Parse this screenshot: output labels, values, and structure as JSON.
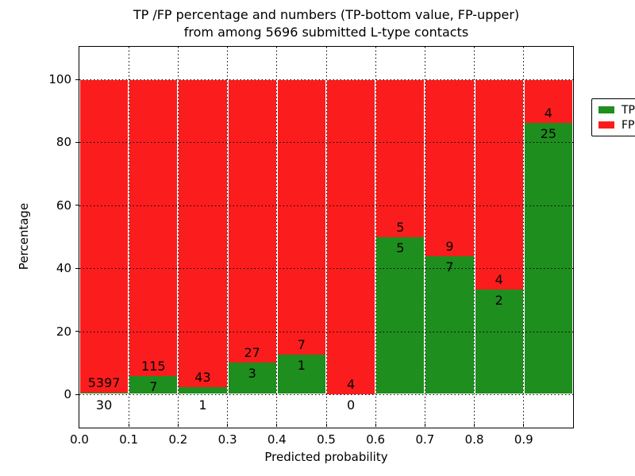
{
  "title": {
    "line1": "TP /FP percentage and numbers (TP-bottom value, FP-upper)",
    "line2": "from among 5696 submitted L-type contacts"
  },
  "axes": {
    "xlabel": "Predicted probability",
    "ylabel": "Percentage",
    "x_ticklabels": [
      "0.0",
      "0.1",
      "0.2",
      "0.3",
      "0.4",
      "0.5",
      "0.6",
      "0.7",
      "0.8",
      "0.9"
    ],
    "y_ticklabels": [
      "100",
      "80",
      "60",
      "40",
      "20",
      "0"
    ]
  },
  "legend": {
    "tp_label": "TP",
    "fp_label": "FP"
  },
  "colors": {
    "tp": "#1e8e1e",
    "fp": "#fb1d1d",
    "frame": "#000000",
    "background": "#ffffff"
  },
  "chart_data": {
    "type": "bar",
    "subtype": "stacked-percentage-histogram",
    "title": "TP /FP percentage and numbers (TP-bottom value, FP-upper)\nfrom among 5696 submitted L-type contacts",
    "xlabel": "Predicted probability",
    "ylabel": "Percentage",
    "total_submitted": 5696,
    "bin_edges": [
      0.0,
      0.1,
      0.2,
      0.3,
      0.4,
      0.5,
      0.6,
      0.7,
      0.8,
      0.9,
      1.0
    ],
    "categories": [
      "0.0-0.1",
      "0.1-0.2",
      "0.2-0.3",
      "0.3-0.4",
      "0.4-0.5",
      "0.5-0.6",
      "0.6-0.7",
      "0.7-0.8",
      "0.8-0.9",
      "0.9-1.0"
    ],
    "series": [
      {
        "name": "TP",
        "color": "#1e8e1e",
        "counts": [
          30,
          7,
          1,
          3,
          1,
          0,
          5,
          7,
          2,
          25
        ]
      },
      {
        "name": "FP",
        "color": "#fb1d1d",
        "counts": [
          5397,
          115,
          43,
          27,
          7,
          4,
          5,
          9,
          4,
          4
        ]
      }
    ],
    "tp_percent": [
      0.55,
      5.74,
      2.27,
      10.0,
      12.5,
      0.0,
      50.0,
      43.75,
      33.33,
      86.21
    ],
    "xlim": [
      0.0,
      1.0
    ],
    "ylim": [
      -10.5,
      110.5
    ],
    "grid": true,
    "grid_style": "dotted",
    "legend_position": "upper right"
  }
}
